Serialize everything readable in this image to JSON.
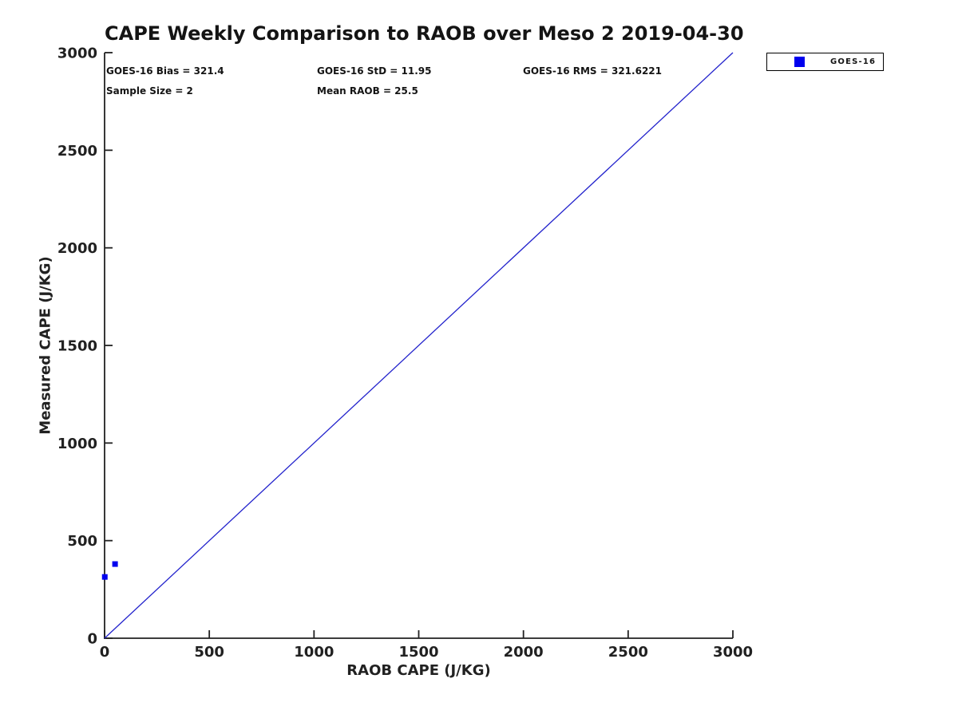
{
  "chart_data": {
    "type": "scatter",
    "title": "CAPE Weekly Comparison to RAOB over Meso 2 2019-04-30",
    "xlabel": "RAOB CAPE (J/KG)",
    "ylabel": "Measured CAPE (J/KG)",
    "xlim": [
      0,
      3000
    ],
    "ylim": [
      0,
      3000
    ],
    "x_ticks": [
      0,
      500,
      1000,
      1500,
      2000,
      2500,
      3000
    ],
    "y_ticks": [
      0,
      500,
      1000,
      1500,
      2000,
      2500,
      3000
    ],
    "grid": false,
    "legend_position": "top-right-outside",
    "series": [
      {
        "name": "GOES-16",
        "marker": "square",
        "marker_size_px": 7,
        "color": "#0000ee",
        "points": [
          [
            1,
            314
          ],
          [
            50,
            380
          ]
        ]
      }
    ],
    "reference_line": {
      "name": "identity-line",
      "from": [
        0,
        0
      ],
      "to": [
        3000,
        3000
      ],
      "color": "#2222cc"
    },
    "annotations": [
      {
        "id": "bias",
        "text": "GOES-16 Bias = 321.4"
      },
      {
        "id": "std",
        "text": "GOES-16 StD = 11.95"
      },
      {
        "id": "rms",
        "text": "GOES-16 RMS = 321.6221"
      },
      {
        "id": "sample",
        "text": "Sample Size = 2"
      },
      {
        "id": "mean",
        "text": "Mean RAOB = 25.5"
      }
    ],
    "axis_color": "#212121",
    "tick_label_color": "#212121"
  }
}
